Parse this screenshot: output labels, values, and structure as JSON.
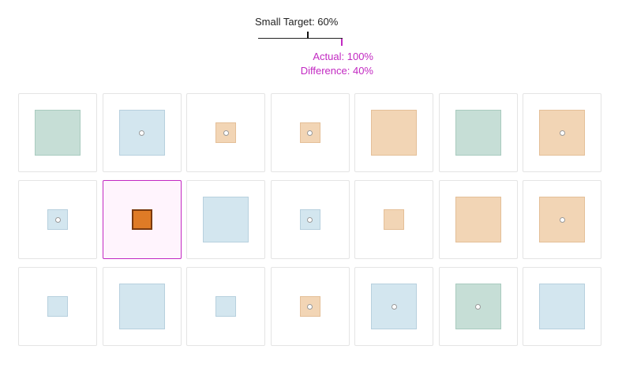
{
  "header": {
    "target_label": "Small Target: 60%",
    "actual_label": "Actual: 100%",
    "difference_label": "Difference: 40%"
  },
  "colors": {
    "accent": "#c229c2",
    "green": "#c6ded6",
    "blue": "#d3e6ef",
    "peach": "#f2d5b5",
    "orange": "#df7b26"
  },
  "grid": {
    "rows": [
      [
        {
          "size": "large",
          "color": "green",
          "dot": false
        },
        {
          "size": "large",
          "color": "blue",
          "dot": true
        },
        {
          "size": "medium",
          "color": "peach",
          "dot": true
        },
        {
          "size": "medium",
          "color": "peach",
          "dot": true
        },
        {
          "size": "large",
          "color": "peach",
          "dot": false
        },
        {
          "size": "large",
          "color": "green",
          "dot": false
        },
        {
          "size": "large",
          "color": "peach",
          "dot": true
        }
      ],
      [
        {
          "size": "medium",
          "color": "blue",
          "dot": true
        },
        {
          "size": "medium",
          "color": "orange",
          "dot": false,
          "selected": true
        },
        {
          "size": "large",
          "color": "blue",
          "dot": false
        },
        {
          "size": "medium",
          "color": "blue",
          "dot": true
        },
        {
          "size": "medium",
          "color": "peach",
          "dot": false
        },
        {
          "size": "large",
          "color": "peach",
          "dot": false
        },
        {
          "size": "large",
          "color": "peach",
          "dot": true
        }
      ],
      [
        {
          "size": "medium",
          "color": "blue",
          "dot": false
        },
        {
          "size": "large",
          "color": "blue",
          "dot": false
        },
        {
          "size": "medium",
          "color": "blue",
          "dot": false
        },
        {
          "size": "medium",
          "color": "peach",
          "dot": true
        },
        {
          "size": "large",
          "color": "blue",
          "dot": true
        },
        {
          "size": "large",
          "color": "green",
          "dot": true
        },
        {
          "size": "large",
          "color": "blue",
          "dot": false
        }
      ]
    ]
  }
}
